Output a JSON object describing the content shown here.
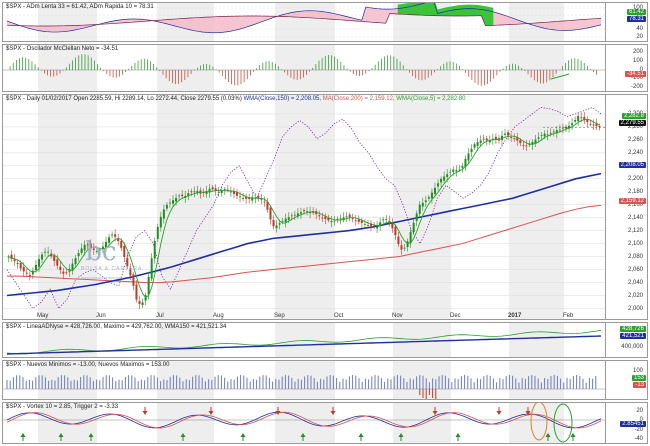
{
  "colors": {
    "up": "#1f8f1f",
    "down": "#c0392b",
    "wma150": "#1f2fa0",
    "ma200": "#d9534f",
    "wma5": "#2ca02c",
    "dotted": "#7b1fa2",
    "grid": "#d9d9d9",
    "bg_band": "#eeeeee",
    "label_black": "#111111",
    "label_blue": "#1f2fa0",
    "label_red": "#d9534f",
    "label_green": "#2ca02c"
  },
  "panes": {
    "rsi": {
      "title": "$SPX - ADm Lenta 33 = 61.42, ADm Rapida 10 = 78.31",
      "ticks": [
        "100",
        "80",
        "40",
        "20"
      ],
      "labels": [
        "78.31",
        "61.42"
      ]
    },
    "osc": {
      "title": "$SPX - Oscilador McClellan Neto = -34.51",
      "ticks": [
        "200",
        "100",
        "0",
        "-100",
        "-200"
      ],
      "labels": [
        "-34.51"
      ]
    },
    "price": {
      "title": "$SPX - Daily 01/02/2017 Open 2285.59, Hi 2289.14, Lo 2272.44, Close 2279.55 (0.03%)",
      "legend_wma150": "WMA(Close,150) = 2,208.05,",
      "legend_ma200": "MA(Close,200) = 2,159.12,",
      "legend_wma5": "WMA(Close,5) = 2,282.80",
      "ticks": [
        "2,300",
        "2,280",
        "2,260",
        "2,240",
        "2,220",
        "2,200",
        "2,180",
        "2,160",
        "2,140",
        "2,120",
        "2,100",
        "2,080",
        "2,060",
        "2,040",
        "2,020",
        "2,000"
      ],
      "labels": [
        "2,282.8",
        "2,279.55",
        "2,208.05",
        "2,159.12"
      ]
    },
    "ad": {
      "title": "$SPX - LineaADNyse = 428,726.00, Maximo = 429,762.00, WMA150 = 421,521.34",
      "ticks": [
        "400,000"
      ],
      "labels": [
        "428,726",
        "421,521"
      ]
    },
    "breadth": {
      "title": "$SPX - Nuevos Minimos = -13.00, Nuevos Maximos = 153.00",
      "ticks": [
        "100"
      ],
      "labels": [
        "153",
        "-13"
      ]
    },
    "vortex": {
      "title": "$SPX - Vortex 10 = 2.85, Trigger 2 = -3.33",
      "ticks": [
        "20",
        "0",
        "-20",
        "-40"
      ],
      "labels": [
        "2.85451"
      ]
    }
  },
  "months": [
    "May",
    "Jun",
    "Jul",
    "Aug",
    "Sep",
    "Oct",
    "Nov",
    "Dec",
    "2017",
    "Feb"
  ],
  "logo": {
    "mark": "bc",
    "brand": "BOLSA & CARTERA",
    "url": "www.bolsaycartera.com"
  },
  "chart_data": {
    "type": "line",
    "symbol": "$SPX",
    "date": "01/02/2017",
    "open": 2285.59,
    "high": 2289.14,
    "low": 2272.44,
    "close": 2279.55,
    "change_pct": 0.03,
    "wma150": 2208.05,
    "ma200": 2159.12,
    "wma5": 2282.8,
    "ylim": [
      1990,
      2320
    ],
    "close_path": [
      2080,
      2075,
      2070,
      2060,
      2055,
      2050,
      2062,
      2075,
      2085,
      2090,
      2080,
      2070,
      2060,
      2052,
      2058,
      2070,
      2082,
      2092,
      2100,
      2095,
      2090,
      2088,
      2095,
      2105,
      2115,
      2110,
      2100,
      2080,
      2060,
      2040,
      2010,
      2005,
      2020,
      2060,
      2100,
      2130,
      2150,
      2160,
      2165,
      2170,
      2175,
      2172,
      2178,
      2180,
      2182,
      2176,
      2180,
      2185,
      2183,
      2179,
      2182,
      2184,
      2180,
      2175,
      2172,
      2170,
      2168,
      2172,
      2170,
      2168,
      2163,
      2140,
      2125,
      2130,
      2135,
      2140,
      2142,
      2145,
      2148,
      2150,
      2150,
      2148,
      2145,
      2140,
      2138,
      2135,
      2135,
      2138,
      2140,
      2142,
      2140,
      2136,
      2133,
      2131,
      2128,
      2127,
      2126,
      2135,
      2140,
      2130,
      2120,
      2100,
      2088,
      2100,
      2120,
      2140,
      2160,
      2164,
      2170,
      2180,
      2190,
      2200,
      2205,
      2210,
      2215,
      2212,
      2220,
      2235,
      2245,
      2255,
      2258,
      2262,
      2258,
      2262,
      2260,
      2265,
      2270,
      2265,
      2262,
      2258,
      2252,
      2250,
      2255,
      2260,
      2265,
      2270,
      2268,
      2272,
      2275,
      2276,
      2280,
      2282,
      2288,
      2297,
      2292,
      2288,
      2284,
      2282,
      2280
    ],
    "wma150_path": [
      2020,
      2022,
      2024,
      2026,
      2028,
      2031,
      2034,
      2037,
      2041,
      2045,
      2049,
      2054,
      2059,
      2064,
      2070,
      2076,
      2082,
      2088,
      2094,
      2100,
      2104,
      2108,
      2110,
      2112,
      2114,
      2116,
      2118,
      2120,
      2123,
      2126,
      2130,
      2134,
      2138,
      2142,
      2146,
      2150,
      2154,
      2158,
      2162,
      2166,
      2170,
      2176,
      2182,
      2188,
      2194,
      2200,
      2204,
      2208
    ],
    "ma200_path": [
      2050,
      2050,
      2049,
      2048,
      2047,
      2046,
      2045,
      2044,
      2043,
      2042,
      2041,
      2040,
      2040,
      2041,
      2043,
      2045,
      2047,
      2050,
      2053,
      2056,
      2058,
      2060,
      2062,
      2064,
      2066,
      2068,
      2070,
      2072,
      2074,
      2076,
      2078,
      2080,
      2084,
      2088,
      2092,
      2096,
      2100,
      2106,
      2112,
      2118,
      2124,
      2130,
      2136,
      2142,
      2148,
      2153,
      2157,
      2159
    ],
    "dotted_path": [
      2060,
      2040,
      2020,
      2000,
      2010,
      2030,
      2000,
      2015,
      2045,
      2055,
      2060,
      2050,
      2040,
      2035,
      2080,
      2110,
      2120,
      2100,
      2050,
      2030,
      2060,
      2090,
      2120,
      2140,
      2160,
      2190,
      2210,
      2220,
      2195,
      2170,
      2200,
      2230,
      2265,
      2280,
      2290,
      2280,
      2262,
      2270,
      2285,
      2292,
      2278,
      2255,
      2240,
      2218,
      2200,
      2190,
      2160,
      2120,
      2100,
      2130,
      2170,
      2190,
      2180,
      2170,
      2178,
      2190,
      2210,
      2240,
      2262,
      2280,
      2290,
      2300,
      2310,
      2308,
      2304,
      2296,
      2300,
      2305,
      2310,
      2300
    ]
  }
}
